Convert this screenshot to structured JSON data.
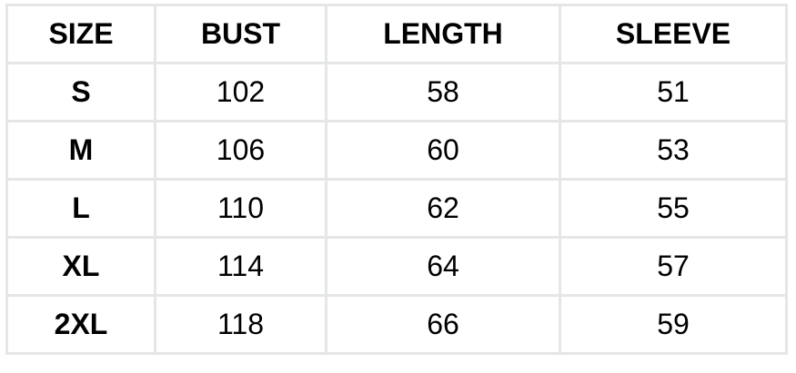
{
  "table": {
    "headers": [
      "SIZE",
      "BUST",
      "LENGTH",
      "SLEEVE"
    ],
    "rows": [
      [
        "S",
        "102",
        "58",
        "51"
      ],
      [
        "M",
        "106",
        "60",
        "53"
      ],
      [
        "L",
        "110",
        "62",
        "55"
      ],
      [
        "XL",
        "114",
        "64",
        "57"
      ],
      [
        "2XL",
        "118",
        "66",
        "59"
      ]
    ]
  }
}
